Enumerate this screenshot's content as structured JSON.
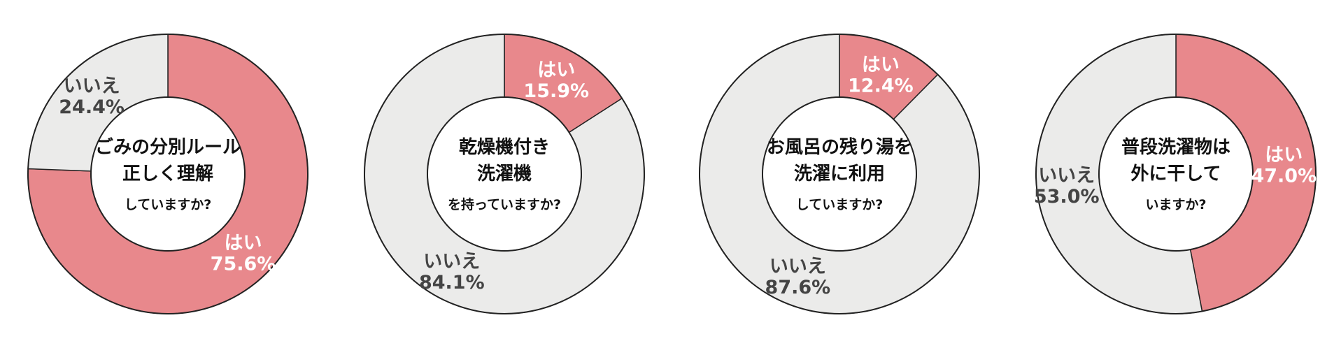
{
  "colors": {
    "yes": "#E8888C",
    "no": "#EBEBEA",
    "outline": "#222222"
  },
  "chart_data": [
    {
      "type": "pie",
      "title_lines": [
        "ごみの分別ルール",
        "正しく理解"
      ],
      "title_sub": "していますか?",
      "slices": [
        {
          "label": "はい",
          "value": 75.6,
          "display": "75.6%"
        },
        {
          "label": "いいえ",
          "value": 24.4,
          "display": "24.4%"
        }
      ]
    },
    {
      "type": "pie",
      "title_lines": [
        "乾燥機付き",
        "洗濯機"
      ],
      "title_sub": "を持っていますか?",
      "slices": [
        {
          "label": "はい",
          "value": 15.9,
          "display": "15.9%"
        },
        {
          "label": "いいえ",
          "value": 84.1,
          "display": "84.1%"
        }
      ]
    },
    {
      "type": "pie",
      "title_lines": [
        "お風呂の残り湯を",
        "洗濯に利用"
      ],
      "title_sub": "していますか?",
      "slices": [
        {
          "label": "はい",
          "value": 12.4,
          "display": "12.4%"
        },
        {
          "label": "いいえ",
          "value": 87.6,
          "display": "87.6%"
        }
      ]
    },
    {
      "type": "pie",
      "title_lines": [
        "普段洗濯物は",
        "外に干して"
      ],
      "title_sub": "いますか?",
      "slices": [
        {
          "label": "はい",
          "value": 47.0,
          "display": "47.0%"
        },
        {
          "label": "いいえ",
          "value": 53.0,
          "display": "53.0%"
        }
      ]
    }
  ]
}
